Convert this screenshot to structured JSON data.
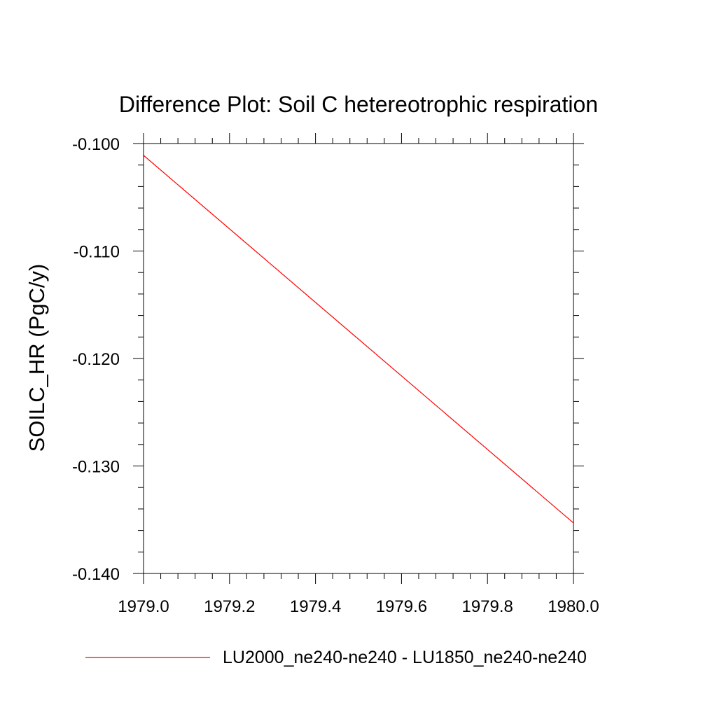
{
  "chart_data": {
    "type": "line",
    "title": "Difference Plot: Soil C hetereotrophic respiration",
    "xlabel": "",
    "ylabel": "SOILC_HR  (PgC/y)",
    "xlim": [
      1979.0,
      1980.0
    ],
    "ylim": [
      -0.14,
      -0.1
    ],
    "x_ticks": [
      "1979.0",
      "1979.2",
      "1979.4",
      "1979.6",
      "1979.8",
      "1980.0"
    ],
    "x_tick_values": [
      1979.0,
      1979.2,
      1979.4,
      1979.6,
      1979.8,
      1980.0
    ],
    "y_ticks": [
      "-0.100",
      "-0.110",
      "-0.120",
      "-0.130",
      "-0.140"
    ],
    "y_tick_values": [
      -0.1,
      -0.11,
      -0.12,
      -0.13,
      -0.14
    ],
    "grid": false,
    "legend_position": "bottom",
    "series": [
      {
        "name": "LU2000_ne240-ne240 - LU1850_ne240-ne240",
        "color": "#ff0000",
        "x": [
          1979.0,
          1980.0
        ],
        "y": [
          -0.1011,
          -0.1353
        ]
      }
    ]
  }
}
